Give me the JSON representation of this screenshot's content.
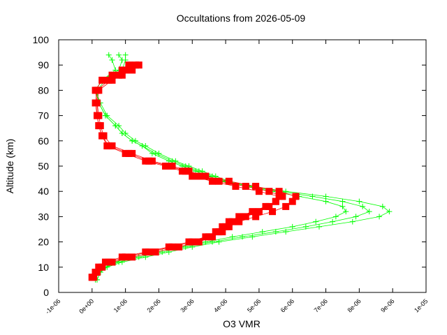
{
  "chart_data": {
    "type": "scatter",
    "title": "Occultations from 2026-05-09",
    "xlabel": "O3 VMR",
    "ylabel": "Altitude (km)",
    "xlim": [
      -1e-06,
      1e-05
    ],
    "ylim": [
      0,
      100
    ],
    "x_ticks": [
      "-1e-06",
      "0e+00",
      "1e-06",
      "2e-06",
      "3e-06",
      "4e-06",
      "5e-06",
      "6e-06",
      "7e-06",
      "8e-06",
      "9e-06",
      "1e-05"
    ],
    "y_ticks": [
      "0",
      "10",
      "20",
      "30",
      "40",
      "50",
      "60",
      "70",
      "80",
      "90",
      "100"
    ],
    "grid": false,
    "legend": "none",
    "series": [
      {
        "color": "#00ff00",
        "marker": "plus",
        "altitude": [
          5,
          8,
          10,
          12,
          14,
          16,
          18,
          20,
          22,
          24,
          26,
          28,
          30,
          32,
          34,
          36,
          38,
          40,
          42,
          44,
          46,
          48,
          50,
          52,
          55,
          58,
          60,
          63,
          66,
          70,
          75,
          80,
          84,
          88,
          92,
          94
        ],
        "vmr_profiles": [
          [
            1.5e-07,
            2.5e-07,
            4.5e-07,
            9e-07,
            1.6e-06,
            2.3e-06,
            3e-06,
            3.8e-06,
            4.8e-06,
            5.8e-06,
            6.8e-06,
            7.8e-06,
            8.6e-06,
            8.9e-06,
            8.7e-06,
            8e-06,
            7e-06,
            5.8e-06,
            4.8e-06,
            4.1e-06,
            3.7e-06,
            3.3e-06,
            2.9e-06,
            2.5e-06,
            2e-06,
            1.6e-06,
            1.3e-06,
            1e-06,
            8e-07,
            4.5e-07,
            2.5e-07,
            1e-07,
            3e-07,
            7e-07,
            6e-07,
            5e-07
          ],
          [
            1.5e-07,
            2.5e-07,
            4e-07,
            8e-07,
            1.4e-06,
            2.1e-06,
            2.8e-06,
            3.6e-06,
            4.5e-06,
            5.5e-06,
            6.4e-06,
            7.2e-06,
            7.9e-06,
            8.3e-06,
            8.1e-06,
            7.5e-06,
            6.6e-06,
            5.6e-06,
            4.7e-06,
            4e-06,
            3.6e-06,
            3.2e-06,
            2.8e-06,
            2.4e-06,
            1.9e-06,
            1.5e-06,
            1.2e-06,
            9e-07,
            7e-07,
            4e-07,
            2e-07,
            1.5e-07,
            4e-07,
            9e-07,
            1e-06,
            1e-06
          ],
          [
            1e-07,
            2e-07,
            4e-07,
            7e-07,
            1.2e-06,
            1.9e-06,
            2.6e-06,
            3.4e-06,
            4.2e-06,
            5.1e-06,
            6e-06,
            6.7e-06,
            7.3e-06,
            7.6e-06,
            7.5e-06,
            7e-06,
            6.2e-06,
            5.4e-06,
            4.6e-06,
            3.9e-06,
            3.5e-06,
            3.1e-06,
            2.7e-06,
            2.3e-06,
            1.8e-06,
            1.5e-06,
            1.2e-06,
            9e-07,
            7e-07,
            4e-07,
            2e-07,
            1e-07,
            3e-07,
            8e-07,
            9e-07,
            8e-07
          ]
        ]
      },
      {
        "color": "#ff0000",
        "marker": "filled-square",
        "altitude": [
          6,
          8,
          10,
          12,
          14,
          16,
          18,
          20,
          22,
          24,
          26,
          28,
          30,
          32,
          34,
          36,
          38,
          40,
          42,
          44,
          46,
          48,
          50,
          52,
          55,
          58,
          62,
          66,
          70,
          75,
          80,
          84,
          86,
          88,
          90
        ],
        "vmr_profiles": [
          [
            0,
            1e-07,
            2e-07,
            4e-07,
            9e-07,
            1.6e-06,
            2.3e-06,
            2.9e-06,
            3.4e-06,
            3.8e-06,
            4e-06,
            4.2e-06,
            4.6e-06,
            5e-06,
            5.3e-06,
            5.5e-06,
            5.7e-06,
            5.3e-06,
            4.6e-06,
            3.8e-06,
            3.2e-06,
            2.8e-06,
            2.3e-06,
            1.7e-06,
            1.1e-06,
            5e-07,
            3e-07,
            2e-07,
            1.5e-07,
            1.5e-07,
            1e-07,
            3e-07,
            6e-07,
            9e-07,
            1.1e-06
          ],
          [
            5e-08,
            1.5e-07,
            3e-07,
            6e-07,
            1.2e-06,
            1.9e-06,
            2.6e-06,
            3.2e-06,
            3.6e-06,
            3.9e-06,
            4.1e-06,
            4.4e-06,
            4.9e-06,
            5.4e-06,
            5.8e-06,
            6e-06,
            6.1e-06,
            5.6e-06,
            4.9e-06,
            4.1e-06,
            3.4e-06,
            2.9e-06,
            2.4e-06,
            1.8e-06,
            1.2e-06,
            6e-07,
            3.5e-07,
            2.5e-07,
            2e-07,
            1.5e-07,
            2e-07,
            6e-07,
            9e-07,
            1.2e-06,
            1.4e-06
          ],
          [
            0,
            1e-07,
            2e-07,
            5e-07,
            1e-06,
            1.7e-06,
            2.4e-06,
            3e-06,
            3.5e-06,
            3.7e-06,
            3.9e-06,
            4.1e-06,
            4.4e-06,
            4.8e-06,
            5.2e-06,
            5.5e-06,
            5.6e-06,
            5e-06,
            4.3e-06,
            3.6e-06,
            3e-06,
            2.7e-06,
            2.2e-06,
            1.6e-06,
            1e-06,
            4.5e-07,
            3e-07,
            2e-07,
            1.5e-07,
            1e-07,
            1.5e-07,
            5e-07,
            8e-07,
            1e-06,
            1.3e-06
          ]
        ]
      }
    ]
  }
}
